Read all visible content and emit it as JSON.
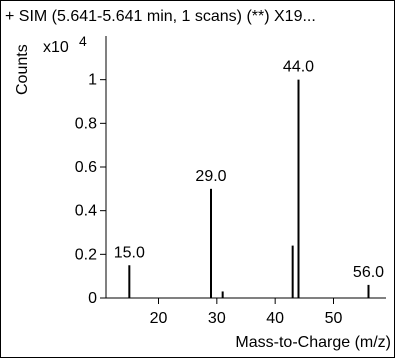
{
  "chart_data": {
    "type": "bar",
    "title": "+ SIM (5.641-5.641 min, 1 scans) (**) X19...",
    "ylabel": "Counts",
    "y_multiplier": "x10",
    "y_exponent": "4",
    "xlabel": "Mass-to-Charge (m/z)",
    "xlim": [
      11,
      59
    ],
    "ylim": [
      0,
      1.2
    ],
    "x_ticks": [
      20,
      30,
      40,
      50
    ],
    "x_tick_labels": [
      "20",
      "30",
      "40",
      "50"
    ],
    "y_ticks": [
      0,
      0.2,
      0.4,
      0.6,
      0.8,
      1
    ],
    "y_tick_labels": [
      "0",
      "0.2",
      "0.4",
      "0.6",
      "0.8",
      "1"
    ],
    "peaks": [
      {
        "x": 15.0,
        "y": 0.15,
        "label": "15.0"
      },
      {
        "x": 29.0,
        "y": 0.5,
        "label": "29.0"
      },
      {
        "x": 31.0,
        "y": 0.03,
        "label": ""
      },
      {
        "x": 43.0,
        "y": 0.24,
        "label": ""
      },
      {
        "x": 44.0,
        "y": 1.0,
        "label": "44.0"
      },
      {
        "x": 56.0,
        "y": 0.06,
        "label": "56.0"
      }
    ],
    "grid": false,
    "legend": "none"
  }
}
